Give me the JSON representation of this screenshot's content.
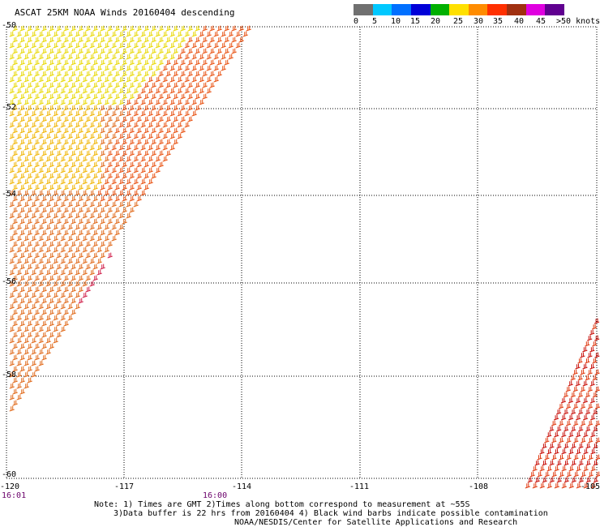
{
  "title": "ASCAT 25KM NOAA Winds 20160404 descending",
  "legend": {
    "bins": [
      {
        "label": "0",
        "color": "#707070"
      },
      {
        "label": "5",
        "color": "#00c8ff"
      },
      {
        "label": "10",
        "color": "#0070ff"
      },
      {
        "label": "15",
        "color": "#0000d8"
      },
      {
        "label": "20",
        "color": "#00b000"
      },
      {
        "label": "25",
        "color": "#ffe000"
      },
      {
        "label": "30",
        "color": "#ff8c00"
      },
      {
        "label": "35",
        "color": "#ff3000"
      },
      {
        "label": "40",
        "color": "#a03010"
      },
      {
        "label": "45",
        "color": "#e000e0"
      },
      {
        "label": "",
        "color": "#600090"
      }
    ],
    "tick_labels": [
      "0",
      "5",
      "10",
      "15",
      "20",
      "25",
      "30",
      "35",
      "40",
      "45",
      ">50 knots"
    ]
  },
  "axes": {
    "x_ticks": [
      "-120",
      "-117",
      "-114",
      "-111",
      "-108",
      "-105"
    ],
    "y_ticks": [
      "-50",
      "-52",
      "-54",
      "-56",
      "-58",
      "-60"
    ]
  },
  "times": [
    "16:01",
    "16:00"
  ],
  "notes": [
    "Note: 1) Times are GMT 2)Times along bottom correspond to measurement at ~55S",
    "3)Data buffer is 22 hrs from 20160404 4) Black wind barbs indicate possible contamination",
    "NOAA/NESDIS/Center for Satellite Applications and Research"
  ]
}
